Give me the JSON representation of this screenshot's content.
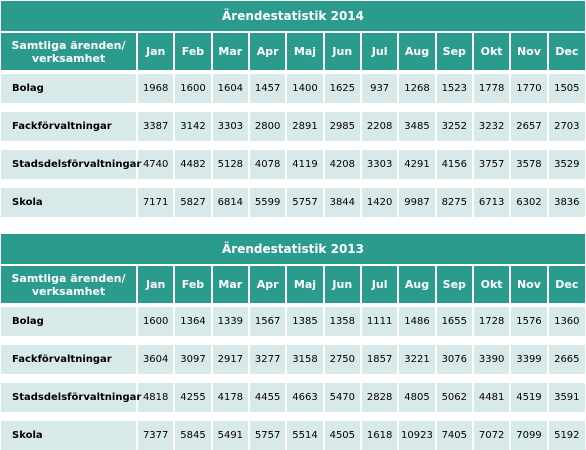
{
  "months": [
    "Jan",
    "Feb",
    "Mar",
    "Apr",
    "Maj",
    "Jun",
    "Jul",
    "Aug",
    "Sep",
    "Okt",
    "Nov",
    "Dec"
  ],
  "category_header": "Samtliga ärenden/ verksamhet",
  "tables": [
    {
      "title": "Ärendestatistik 2014",
      "rows": [
        {
          "label": "Bolag",
          "values": [
            "1968",
            "1600",
            "1604",
            "1457",
            "1400",
            "1625",
            "937",
            "1268",
            "1523",
            "1778",
            "1770",
            "1505"
          ]
        },
        {
          "label": "Fackförvaltningar",
          "values": [
            "3387",
            "3142",
            "3303",
            "2800",
            "2891",
            "2985",
            "2208",
            "3485",
            "3252",
            "3232",
            "2657",
            "2703"
          ]
        },
        {
          "label": "Stadsdelsförvaltningar",
          "values": [
            "4740",
            "4482",
            "5128",
            "4078",
            "4119",
            "4208",
            "3303",
            "4291",
            "4156",
            "3757",
            "3578",
            "3529"
          ]
        },
        {
          "label": "Skola",
          "values": [
            "7171",
            "5827",
            "6814",
            "5599",
            "5757",
            "3844",
            "1420",
            "9987",
            "8275",
            "6713",
            "6302",
            "3836"
          ]
        }
      ]
    },
    {
      "title": "Ärendestatistik 2013",
      "rows": [
        {
          "label": "Bolag",
          "values": [
            "1600",
            "1364",
            "1339",
            "1567",
            "1385",
            "1358",
            "1111",
            "1486",
            "1655",
            "1728",
            "1576",
            "1360"
          ]
        },
        {
          "label": "Fackförvaltningar",
          "values": [
            "3604",
            "3097",
            "2917",
            "3277",
            "3158",
            "2750",
            "1857",
            "3221",
            "3076",
            "3390",
            "3399",
            "2665"
          ]
        },
        {
          "label": "Stadsdelsförvaltningar",
          "values": [
            "4818",
            "4255",
            "4178",
            "4455",
            "4663",
            "5470",
            "2828",
            "4805",
            "5062",
            "4481",
            "4519",
            "3591"
          ]
        },
        {
          "label": "Skola",
          "values": [
            "7377",
            "5845",
            "5491",
            "5757",
            "5514",
            "4505",
            "1618",
            "10923",
            "7405",
            "7072",
            "7099",
            "5192"
          ]
        }
      ]
    }
  ]
}
